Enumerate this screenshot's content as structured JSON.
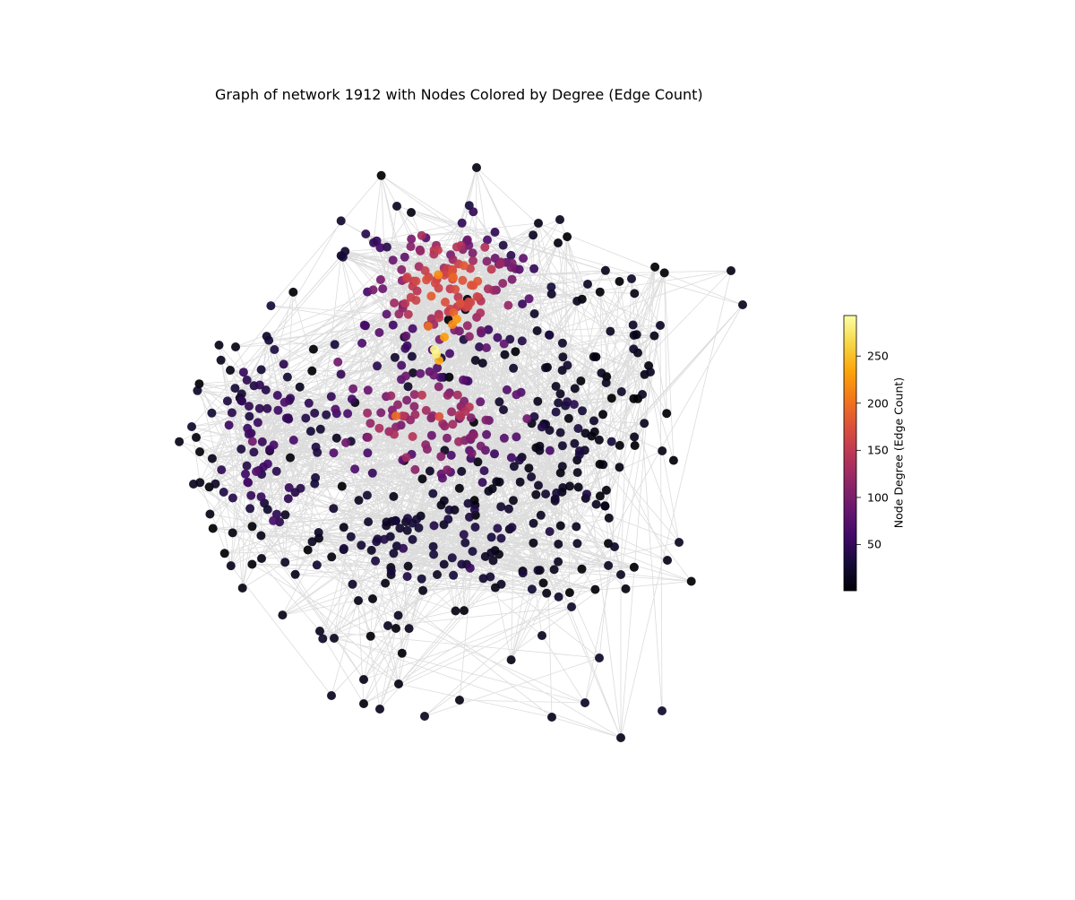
{
  "chart_data": {
    "type": "network",
    "title": "Graph of network 1912 with Nodes Colored by Degree (Edge Count)",
    "colorbar": {
      "label": "Node Degree (Edge Count)",
      "colormap": "inferno",
      "range": [
        1,
        293
      ],
      "ticks": [
        50,
        100,
        150,
        200,
        250
      ],
      "tick_labels": [
        "50",
        "100",
        "150",
        "200",
        "250"
      ],
      "position": "right"
    },
    "node_degree_summary": {
      "min": 1,
      "max": 293,
      "high_degree_clusters": [
        "upper dense cluster (~150–230)",
        "central cluster (~100–200)"
      ],
      "low_degree_periphery": "most peripheral nodes (~1–50)"
    },
    "edge_color": "#808080",
    "axes_visible": false
  }
}
